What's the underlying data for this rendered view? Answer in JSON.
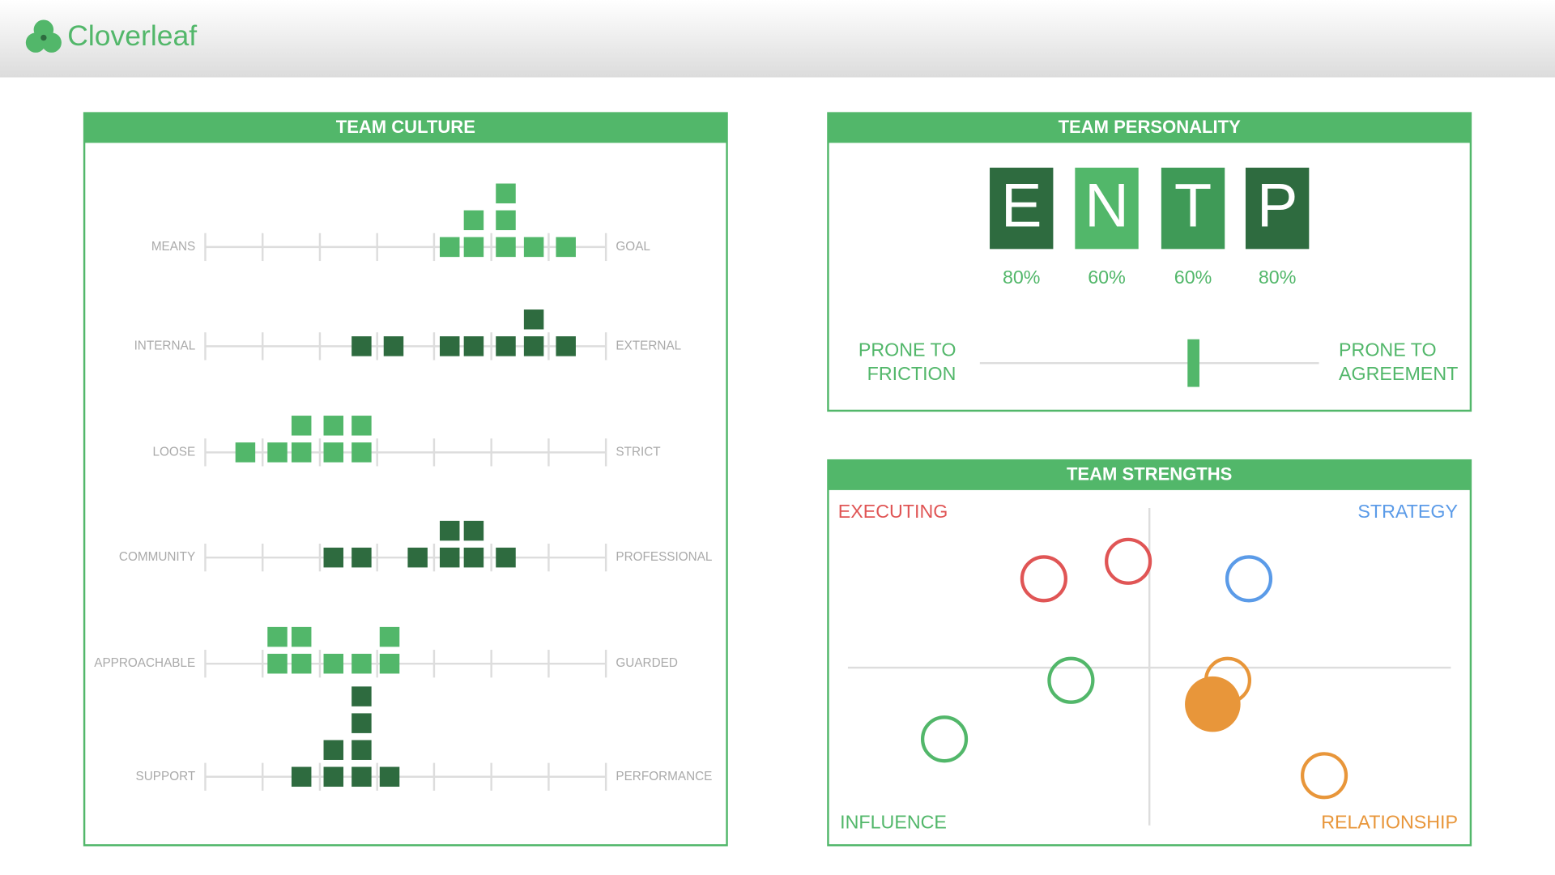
{
  "header": {
    "brand": "Cloverleaf"
  },
  "culture": {
    "title": "TEAM CULTURE",
    "xlim": [
      0,
      100
    ],
    "ticks": [
      0,
      14.3,
      28.6,
      42.9,
      57.1,
      71.4,
      85.7,
      100
    ],
    "rows": [
      {
        "left": "MEANS",
        "right": "GOAL",
        "color": "#52b76a",
        "positions": [
          61,
          67,
          75,
          82,
          90
        ],
        "counts": [
          1,
          2,
          3,
          1,
          1
        ]
      },
      {
        "left": "INTERNAL",
        "right": "EXTERNAL",
        "color": "#2e6b3f",
        "positions": [
          39,
          47,
          61,
          67,
          75,
          82,
          90
        ],
        "counts": [
          1,
          1,
          1,
          1,
          1,
          2,
          1
        ]
      },
      {
        "left": "LOOSE",
        "right": "STRICT",
        "color": "#52b76a",
        "positions": [
          10,
          18,
          24,
          32,
          39
        ],
        "counts": [
          1,
          1,
          2,
          2,
          2
        ]
      },
      {
        "left": "COMMUNITY",
        "right": "PROFESSIONAL",
        "color": "#2e6b3f",
        "positions": [
          32,
          39,
          53,
          61,
          67,
          75
        ],
        "counts": [
          1,
          1,
          1,
          2,
          2,
          1
        ]
      },
      {
        "left": "APPROACHABLE",
        "right": "GUARDED",
        "color": "#52b76a",
        "positions": [
          18,
          24,
          32,
          39,
          46
        ],
        "counts": [
          2,
          2,
          1,
          1,
          2
        ]
      },
      {
        "left": "SUPPORT",
        "right": "PERFORMANCE",
        "color": "#2e6b3f",
        "positions": [
          24,
          32,
          39,
          46
        ],
        "counts": [
          1,
          2,
          4,
          1
        ]
      }
    ]
  },
  "personality": {
    "title": "TEAM PERSONALITY",
    "letters": [
      "E",
      "N",
      "T",
      "P"
    ],
    "colors": [
      "#2e6b3f",
      "#52b76a",
      "#3f9a57",
      "#2e6b3f"
    ],
    "values": [
      80,
      60,
      60,
      80
    ],
    "value_labels": [
      "80%",
      "60%",
      "60%",
      "80%"
    ],
    "slider": {
      "left": [
        "PRONE TO",
        "FRICTION"
      ],
      "right": [
        "PRONE TO",
        "AGREEMENT"
      ],
      "xlim": [
        0,
        100
      ],
      "value": 63
    }
  },
  "strengths": {
    "title": "TEAM STRENGTHS",
    "quadrants": {
      "top_left": "EXECUTING",
      "top_right": "STRATEGY",
      "bottom_left": "INFLUENCE",
      "bottom_right": "RELATIONSHIP"
    },
    "xlim": [
      -100,
      100
    ],
    "ylim": [
      -100,
      100
    ],
    "points": [
      {
        "x": -35,
        "y": 56,
        "color": "#e05555",
        "filled": false
      },
      {
        "x": -7,
        "y": 67,
        "color": "#e05555",
        "filled": false
      },
      {
        "x": 33,
        "y": 56,
        "color": "#5b9be8",
        "filled": false
      },
      {
        "x": -26,
        "y": -8,
        "color": "#52b76a",
        "filled": false
      },
      {
        "x": 26,
        "y": -8,
        "color": "#e8963a",
        "filled": false
      },
      {
        "x": 21,
        "y": -23,
        "color": "#e8963a",
        "filled": true
      },
      {
        "x": -68,
        "y": -45,
        "color": "#52b76a",
        "filled": false
      },
      {
        "x": 58,
        "y": -68,
        "color": "#e8963a",
        "filled": false
      }
    ]
  }
}
